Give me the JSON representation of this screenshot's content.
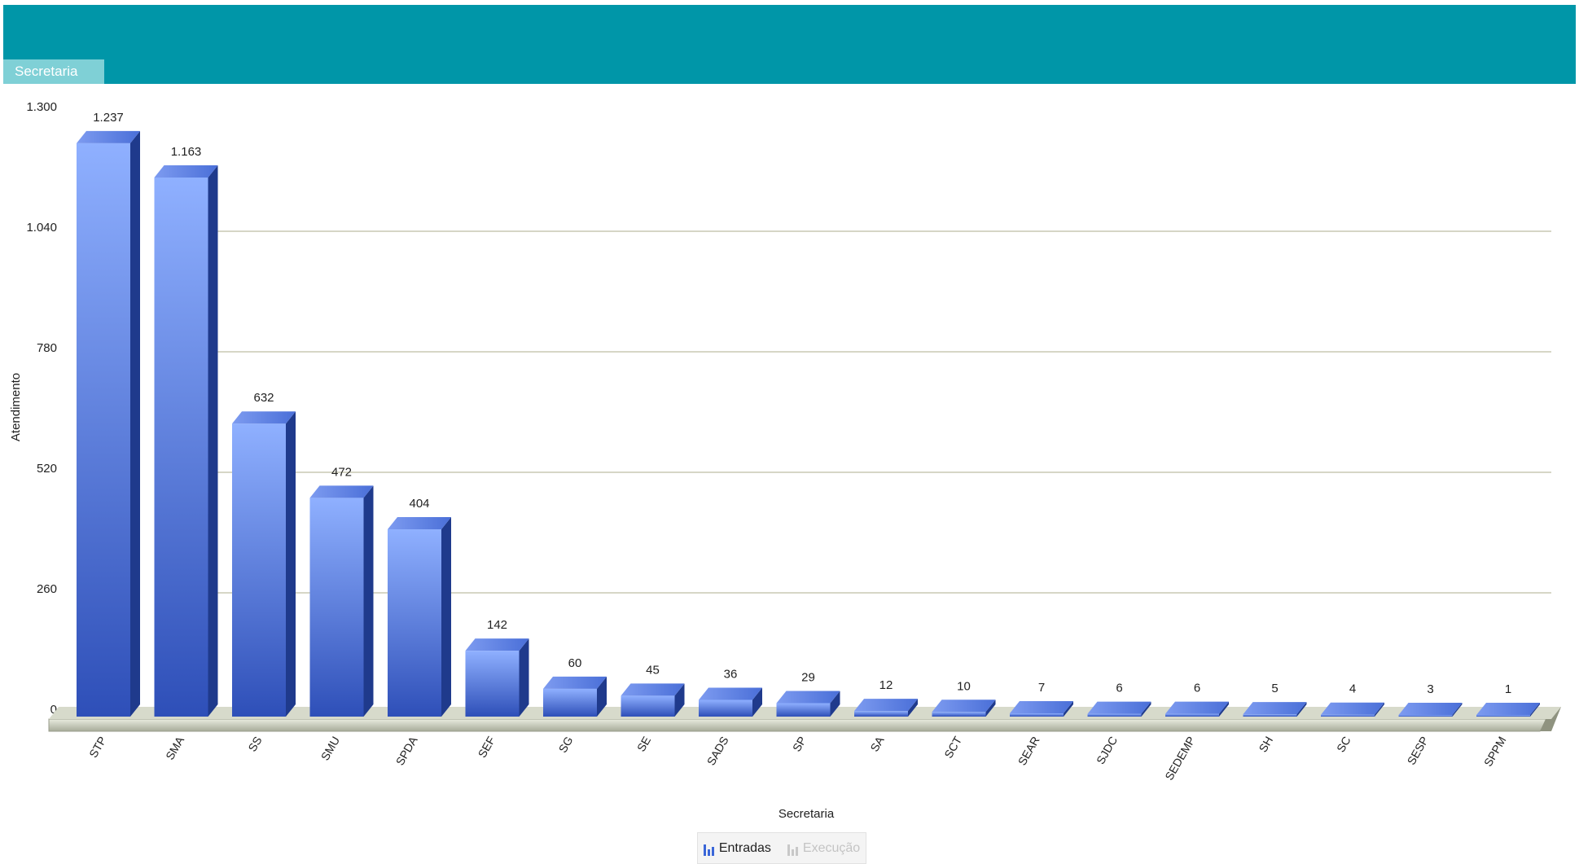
{
  "header": {
    "tab_label": "Secretaria",
    "color": "#0096a8",
    "tab_color": "#7fd0d6"
  },
  "legend": {
    "items": [
      {
        "label": "Entradas",
        "active": true,
        "icon": "bar-chart-icon",
        "color": "#3a66d8"
      },
      {
        "label": "Execução",
        "active": false,
        "icon": "bar-chart-icon",
        "color": "#c8c8c8"
      }
    ]
  },
  "chart_data": {
    "type": "bar",
    "style": "3d",
    "title": "",
    "xlabel": "Secretaria",
    "ylabel": "Atendimento",
    "ylim": [
      0,
      1300
    ],
    "yticks": [
      0,
      260,
      520,
      780,
      1040,
      1300
    ],
    "ytick_labels": [
      "0",
      "260",
      "520",
      "780",
      "1.040",
      "1.300"
    ],
    "grid": true,
    "legend_position": "bottom-center",
    "categories": [
      "STP",
      "SMA",
      "SS",
      "SMU",
      "SPDA",
      "SEF",
      "SG",
      "SE",
      "SADS",
      "SP",
      "SA",
      "SCT",
      "SEAR",
      "SJDC",
      "SEDEMP",
      "SH",
      "SC",
      "SESP",
      "SPPM"
    ],
    "series": [
      {
        "name": "Entradas",
        "color": "#3a66d8",
        "values": [
          1237,
          1163,
          632,
          472,
          404,
          142,
          60,
          45,
          36,
          29,
          12,
          10,
          7,
          6,
          6,
          5,
          4,
          3,
          1
        ],
        "labels": [
          "1.237",
          "1.163",
          "632",
          "472",
          "404",
          "142",
          "60",
          "45",
          "36",
          "29",
          "12",
          "10",
          "7",
          "6",
          "6",
          "5",
          "4",
          "3",
          "1"
        ]
      }
    ]
  }
}
